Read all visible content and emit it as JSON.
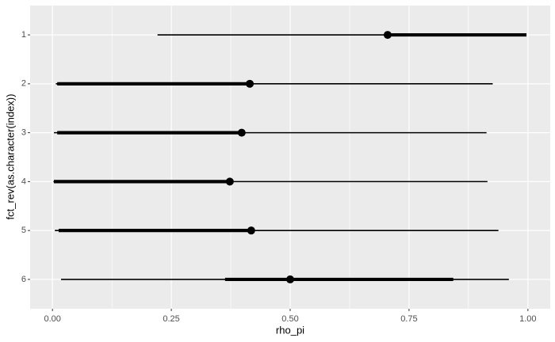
{
  "chart_data": {
    "type": "pointinterval",
    "x_label": "rho_pi",
    "y_label": "fct_rev(as.character(index))",
    "categories": [
      "1",
      "2",
      "3",
      "4",
      "5",
      "6"
    ],
    "point": [
      0.705,
      0.415,
      0.398,
      0.373,
      0.418,
      0.5
    ],
    "outer_low": [
      0.221,
      0.007,
      0.003,
      0.002,
      0.005,
      0.018
    ],
    "outer_high": [
      0.997,
      0.926,
      0.913,
      0.915,
      0.938,
      0.96
    ],
    "inner_low": [
      0.705,
      0.01,
      0.01,
      0.003,
      0.013,
      0.363
    ],
    "inner_high": [
      0.997,
      0.415,
      0.398,
      0.373,
      0.418,
      0.843
    ],
    "color": "#000000",
    "xlim": [
      -0.047,
      1.047
    ],
    "xticks": [
      {
        "value": 0,
        "label": "0.00"
      },
      {
        "value": 0.25,
        "label": "0.25"
      },
      {
        "value": 0.5,
        "label": "0.50"
      },
      {
        "value": 0.75,
        "label": "0.75"
      },
      {
        "value": 1,
        "label": "1.00"
      }
    ],
    "xminor": [
      0.125,
      0.375,
      0.625,
      0.875
    ],
    "grid": true
  }
}
